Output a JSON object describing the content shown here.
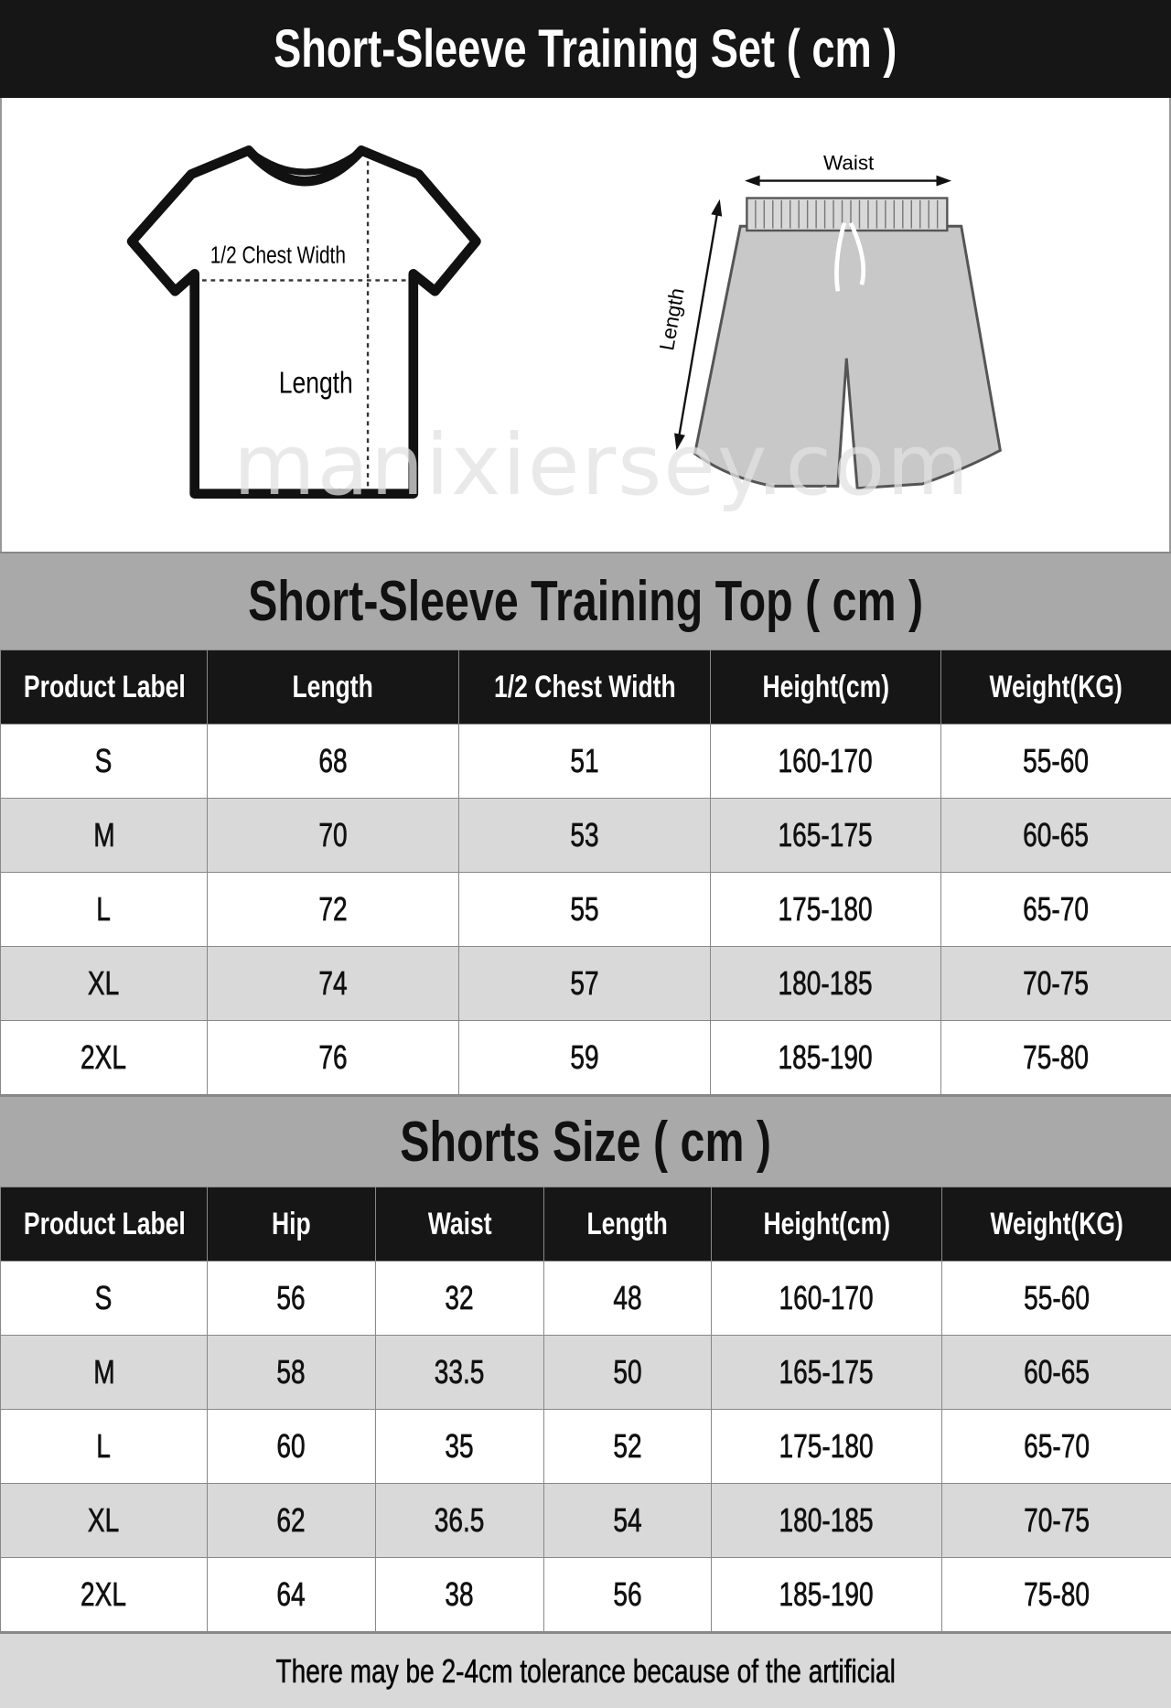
{
  "title": "Short-Sleeve Training Set ( cm )",
  "illustration": {
    "shirt_chest_label": "1/2 Chest Width",
    "shirt_length_label": "Length",
    "shorts_waist_label": "Waist",
    "shorts_length_label": "Length"
  },
  "top_table": {
    "title": "Short-Sleeve Training Top ( cm )",
    "headers": [
      "Product Label",
      "Length",
      "1/2 Chest Width",
      "Height(cm)",
      "Weight(KG)"
    ],
    "rows": [
      [
        "S",
        "68",
        "51",
        "160-170",
        "55-60"
      ],
      [
        "M",
        "70",
        "53",
        "165-175",
        "60-65"
      ],
      [
        "L",
        "72",
        "55",
        "175-180",
        "65-70"
      ],
      [
        "XL",
        "74",
        "57",
        "180-185",
        "70-75"
      ],
      [
        "2XL",
        "76",
        "59",
        "185-190",
        "75-80"
      ]
    ]
  },
  "shorts_table": {
    "title": "Shorts Size ( cm )",
    "headers": [
      "Product Label",
      "Hip",
      "Waist",
      "Length",
      "Height(cm)",
      "Weight(KG)"
    ],
    "rows": [
      [
        "S",
        "56",
        "32",
        "48",
        "160-170",
        "55-60"
      ],
      [
        "M",
        "58",
        "33.5",
        "50",
        "165-175",
        "60-65"
      ],
      [
        "L",
        "60",
        "35",
        "52",
        "175-180",
        "65-70"
      ],
      [
        "XL",
        "62",
        "36.5",
        "54",
        "180-185",
        "70-75"
      ],
      [
        "2XL",
        "64",
        "38",
        "56",
        "185-190",
        "75-80"
      ]
    ]
  },
  "footer": "There may be 2-4cm tolerance because of the artificial",
  "watermark": "manixiersey.com",
  "colors": {
    "header_bg": "#161616",
    "section_bg": "#a9a9a9",
    "alt_row": "#d9d9d9",
    "shorts_fill": "#c8c8c8"
  }
}
